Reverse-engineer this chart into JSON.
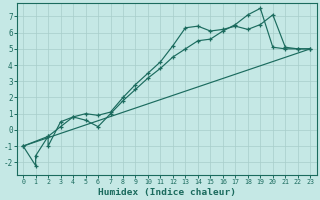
{
  "xlabel": "Humidex (Indice chaleur)",
  "xlim": [
    -0.5,
    23.5
  ],
  "ylim": [
    -2.8,
    7.8
  ],
  "xticks": [
    0,
    1,
    2,
    3,
    4,
    5,
    6,
    7,
    8,
    9,
    10,
    11,
    12,
    13,
    14,
    15,
    16,
    17,
    18,
    19,
    20,
    21,
    22,
    23
  ],
  "yticks": [
    -2,
    -1,
    0,
    1,
    2,
    3,
    4,
    5,
    6,
    7
  ],
  "bg_color": "#c5e8e5",
  "grid_color": "#a8ceca",
  "line_color": "#1b6b5e",
  "line1_x": [
    0,
    1,
    1,
    2,
    2,
    3,
    4,
    5,
    6,
    7,
    8,
    9,
    10,
    11,
    12,
    13,
    14,
    15,
    16,
    17,
    18,
    19,
    20,
    21,
    22,
    23
  ],
  "line1_y": [
    -1.0,
    -2.2,
    -1.6,
    -0.4,
    -1.0,
    0.5,
    0.8,
    0.6,
    0.2,
    1.0,
    1.8,
    2.5,
    3.2,
    3.8,
    4.5,
    5.0,
    5.5,
    5.6,
    6.1,
    6.5,
    7.1,
    7.5,
    5.1,
    5.0,
    5.0,
    5.0
  ],
  "line2_x": [
    0,
    2,
    3,
    4,
    5,
    6,
    7,
    8,
    9,
    10,
    11,
    12,
    13,
    14,
    15,
    16,
    17,
    18,
    19,
    20,
    21,
    22,
    23
  ],
  "line2_y": [
    -1.0,
    -0.4,
    0.2,
    0.8,
    1.0,
    0.9,
    1.1,
    2.0,
    2.8,
    3.5,
    4.2,
    5.2,
    6.3,
    6.4,
    6.1,
    6.2,
    6.4,
    6.2,
    6.5,
    7.1,
    5.1,
    5.0,
    5.0
  ],
  "line3_x": [
    0,
    23
  ],
  "line3_y": [
    -1.0,
    5.0
  ]
}
